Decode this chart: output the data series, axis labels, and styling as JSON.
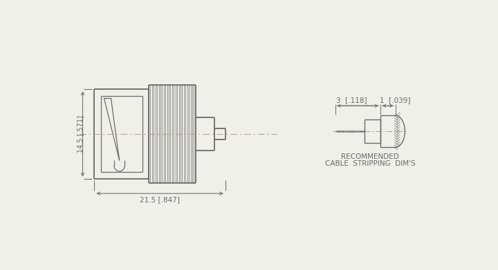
{
  "bg_color": "#f0efe8",
  "line_color": "#6a6a6a",
  "center_color": "#b0a090",
  "dim_color": "#6a6a6a",
  "dim_width": "21.5 [.847]",
  "dim_height": "14.5 [.571]",
  "dim_strip1": "3  [.118]",
  "dim_strip2": "1  [.039]",
  "caption1": "RECOMMENDED",
  "caption2": "CABLE  STRIPPING  DIM'S",
  "n_knurl": 28,
  "arrow_color": "#6a6a6a"
}
